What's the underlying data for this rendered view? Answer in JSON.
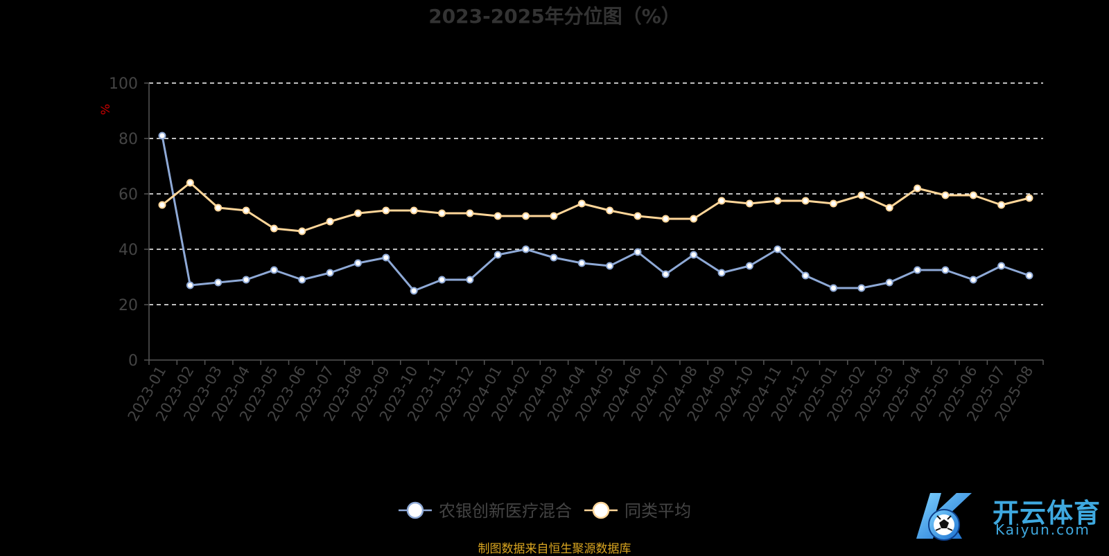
{
  "chart_data": {
    "type": "line",
    "title": "2023-2025年分位图（%）",
    "ylabel": "%",
    "xlabel": "",
    "ylim": [
      0,
      100
    ],
    "yticks": [
      0,
      20,
      40,
      60,
      80,
      100
    ],
    "grid": true,
    "legend_position": "bottom",
    "categories": [
      "2023-01",
      "2023-02",
      "2023-03",
      "2023-04",
      "2023-05",
      "2023-06",
      "2023-07",
      "2023-08",
      "2023-09",
      "2023-10",
      "2023-11",
      "2023-12",
      "2024-01",
      "2024-02",
      "2024-03",
      "2024-04",
      "2024-05",
      "2024-06",
      "2024-07",
      "2024-08",
      "2024-09",
      "2024-10",
      "2024-11",
      "2024-12",
      "2025-01",
      "2025-02",
      "2025-03",
      "2025-04",
      "2025-05",
      "2025-06",
      "2025-07",
      "2025-08"
    ],
    "series": [
      {
        "name": "农银创新医疗混合",
        "color": "#8ea9d6",
        "values": [
          81,
          27,
          28,
          29,
          32.5,
          29,
          31.5,
          35,
          37,
          25,
          29,
          29,
          38,
          40,
          37,
          35,
          34,
          39,
          31,
          38,
          31.5,
          34,
          40,
          30.5,
          26,
          26,
          28,
          32.5,
          32.5,
          29,
          34,
          30.5
        ]
      },
      {
        "name": "同类平均",
        "color": "#ffd699",
        "values": [
          56,
          64,
          55,
          54,
          47.5,
          46.5,
          50,
          53,
          54,
          54,
          53,
          53,
          52,
          52,
          52,
          56.5,
          54,
          52,
          51,
          51,
          57.5,
          56.5,
          57.5,
          57.5,
          56.5,
          59.5,
          55,
          62,
          59.5,
          59.5,
          56,
          58.5
        ]
      }
    ]
  },
  "source_note": "制图数据来自恒生聚源数据库",
  "watermark": {
    "brand_cn": "开云体育",
    "brand_en": "Kaiyun.com"
  }
}
